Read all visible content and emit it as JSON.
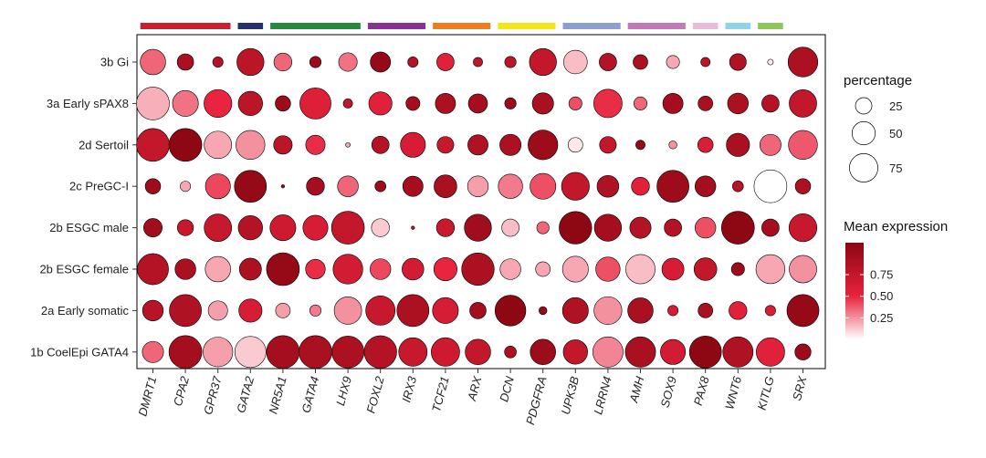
{
  "chart_data": {
    "type": "dot",
    "rows": [
      "3b Gi",
      "3a Early sPAX8",
      "2d Sertoil",
      "2c PreGC-I",
      "2b ESGC male",
      "2b ESGC female",
      "2a Early somatic",
      "1b CoelEpi GATA4"
    ],
    "columns": [
      "DMRT1",
      "CPA2",
      "GPR37",
      "GATA2",
      "NR5A1",
      "GATA4",
      "LHX9",
      "FOXL2",
      "IRX3",
      "TCF21",
      "ARX",
      "DCN",
      "PDGFRA",
      "UPK3B",
      "LRRN4",
      "AMH",
      "SOX9",
      "PAX8",
      "WNT6",
      "KITLG",
      "SRX"
    ],
    "group_bars": [
      {
        "span": 3,
        "color": "#c8202f"
      },
      {
        "span": 1,
        "color": "#27306f"
      },
      {
        "span": 3,
        "color": "#26893c"
      },
      {
        "span": 2,
        "color": "#8a3196"
      },
      {
        "span": 2,
        "color": "#ee7d22"
      },
      {
        "span": 2,
        "color": "#f4e516"
      },
      {
        "span": 2,
        "color": "#8b9fd1"
      },
      {
        "span": 2,
        "color": "#c17ab6"
      },
      {
        "span": 1,
        "color": "#e6bcd9"
      },
      {
        "span": 1,
        "color": "#8fd3e8"
      },
      {
        "span": 1,
        "color": "#8dc65a"
      }
    ],
    "percentage": [
      [
        60,
        25,
        10,
        68,
        30,
        12,
        32,
        38,
        10,
        28,
        8,
        12,
        68,
        52,
        28,
        20,
        16,
        8,
        26,
        3,
        82
      ],
      [
        100,
        62,
        72,
        55,
        22,
        90,
        8,
        50,
        18,
        38,
        34,
        12,
        42,
        16,
        75,
        16,
        38,
        20,
        40,
        28,
        70
      ],
      [
        100,
        100,
        70,
        78,
        32,
        35,
        2,
        28,
        58,
        26,
        38,
        42,
        82,
        20,
        26,
        8,
        6,
        22,
        50,
        42,
        78
      ],
      [
        22,
        10,
        58,
        95,
        1,
        30,
        40,
        11,
        38,
        48,
        40,
        55,
        62,
        72,
        44,
        30,
        95,
        40,
        11,
        100,
        22
      ],
      [
        32,
        24,
        70,
        55,
        62,
        58,
        100,
        30,
        1,
        30,
        68,
        28,
        14,
        98,
        68,
        42,
        28,
        40,
        100,
        28,
        72
      ],
      [
        90,
        40,
        60,
        45,
        100,
        36,
        82,
        40,
        44,
        50,
        98,
        40,
        20,
        62,
        55,
        80,
        45,
        48,
        16,
        78,
        70
      ],
      [
        40,
        95,
        35,
        50,
        20,
        12,
        70,
        80,
        95,
        62,
        25,
        88,
        6,
        62,
        72,
        60,
        10,
        20,
        30,
        10,
        95
      ],
      [
        42,
        100,
        82,
        90,
        100,
        100,
        95,
        98,
        75,
        75,
        60,
        13,
        60,
        55,
        85,
        85,
        58,
        95,
        85,
        75,
        24
      ]
    ],
    "expression": [
      [
        0.35,
        0.92,
        0.85,
        0.8,
        0.35,
        1.0,
        0.32,
        1.05,
        0.85,
        0.55,
        0.78,
        0.8,
        0.75,
        0.15,
        0.85,
        0.9,
        0.2,
        0.8,
        0.88,
        0.05,
        0.9
      ],
      [
        0.18,
        0.32,
        0.5,
        0.8,
        1.0,
        0.58,
        0.75,
        0.55,
        0.95,
        0.9,
        0.95,
        1.0,
        0.92,
        0.4,
        0.48,
        0.35,
        0.95,
        0.92,
        0.9,
        0.85,
        0.75
      ],
      [
        0.75,
        1.1,
        0.2,
        0.25,
        0.8,
        0.48,
        0.2,
        0.85,
        0.62,
        0.72,
        0.88,
        0.9,
        1.0,
        0.05,
        0.75,
        1.05,
        0.25,
        0.6,
        0.92,
        0.35,
        0.38
      ],
      [
        1.0,
        0.2,
        0.42,
        1.05,
        0.95,
        0.95,
        0.35,
        1.0,
        0.95,
        0.92,
        0.22,
        0.3,
        0.4,
        0.75,
        0.88,
        0.55,
        1.0,
        0.95,
        0.82,
        0.0,
        0.9
      ],
      [
        0.98,
        0.72,
        0.72,
        0.85,
        0.68,
        0.62,
        0.75,
        0.12,
        0.8,
        0.72,
        0.98,
        0.15,
        0.35,
        1.1,
        0.95,
        0.85,
        0.85,
        0.4,
        1.1,
        0.95,
        0.72
      ],
      [
        0.85,
        0.92,
        0.2,
        0.9,
        1.05,
        0.48,
        0.65,
        0.42,
        0.65,
        0.5,
        0.9,
        0.2,
        0.2,
        0.2,
        0.4,
        0.15,
        0.62,
        0.75,
        1.0,
        0.2,
        0.25
      ],
      [
        0.82,
        0.88,
        0.22,
        0.62,
        0.22,
        0.3,
        0.25,
        0.72,
        0.9,
        0.62,
        0.95,
        1.1,
        1.05,
        0.88,
        0.25,
        0.92,
        0.62,
        0.92,
        0.55,
        0.6,
        1.05
      ],
      [
        0.35,
        0.95,
        0.22,
        0.12,
        0.95,
        0.92,
        0.9,
        0.85,
        0.72,
        0.68,
        0.75,
        0.9,
        1.0,
        0.75,
        0.28,
        0.92,
        0.65,
        1.1,
        0.88,
        0.55,
        1.0
      ]
    ],
    "legend_size": {
      "title": "percentage",
      "values": [
        25,
        50,
        75
      ]
    },
    "legend_color": {
      "title": "Mean expression",
      "ticks": [
        "0.75",
        "0.50",
        "0.25"
      ],
      "tick_values": [
        0.75,
        0.5,
        0.25
      ],
      "range": [
        0,
        1.12
      ]
    },
    "colors": {
      "low": "#ffffff",
      "mid": "#e8223d",
      "high": "#8b0712",
      "outline": "#000000"
    }
  }
}
